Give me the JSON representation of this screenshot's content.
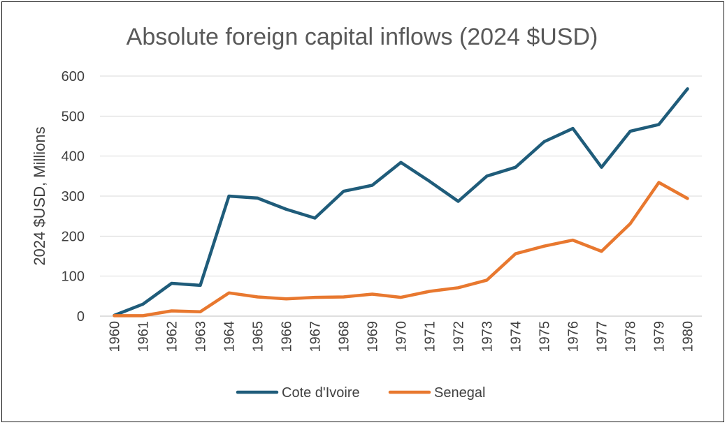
{
  "chart_data": {
    "type": "line",
    "title": "Absolute foreign capital inflows (2024 $USD)",
    "xlabel": "",
    "ylabel": "2024 $USD, Millions",
    "ylim": [
      0,
      600
    ],
    "yticks": [
      0,
      100,
      200,
      300,
      400,
      500,
      600
    ],
    "grid": true,
    "legend": "bottom",
    "categories": [
      "1960",
      "1961",
      "1962",
      "1963",
      "1964",
      "1965",
      "1966",
      "1967",
      "1968",
      "1969",
      "1970",
      "1971",
      "1972",
      "1973",
      "1974",
      "1975",
      "1976",
      "1977",
      "1978",
      "1979",
      "1980"
    ],
    "series": [
      {
        "name": "Cote d'Ivoire",
        "color": "#1f5c7a",
        "values": [
          2,
          30,
          82,
          77,
          300,
          295,
          267,
          245,
          312,
          327,
          384,
          337,
          287,
          350,
          372,
          436,
          469,
          372,
          462,
          479,
          568
        ]
      },
      {
        "name": "Senegal",
        "color": "#e8782f",
        "values": [
          1,
          1,
          13,
          11,
          58,
          48,
          43,
          47,
          48,
          55,
          47,
          62,
          71,
          90,
          156,
          175,
          190,
          162,
          231,
          334,
          294
        ]
      }
    ]
  }
}
